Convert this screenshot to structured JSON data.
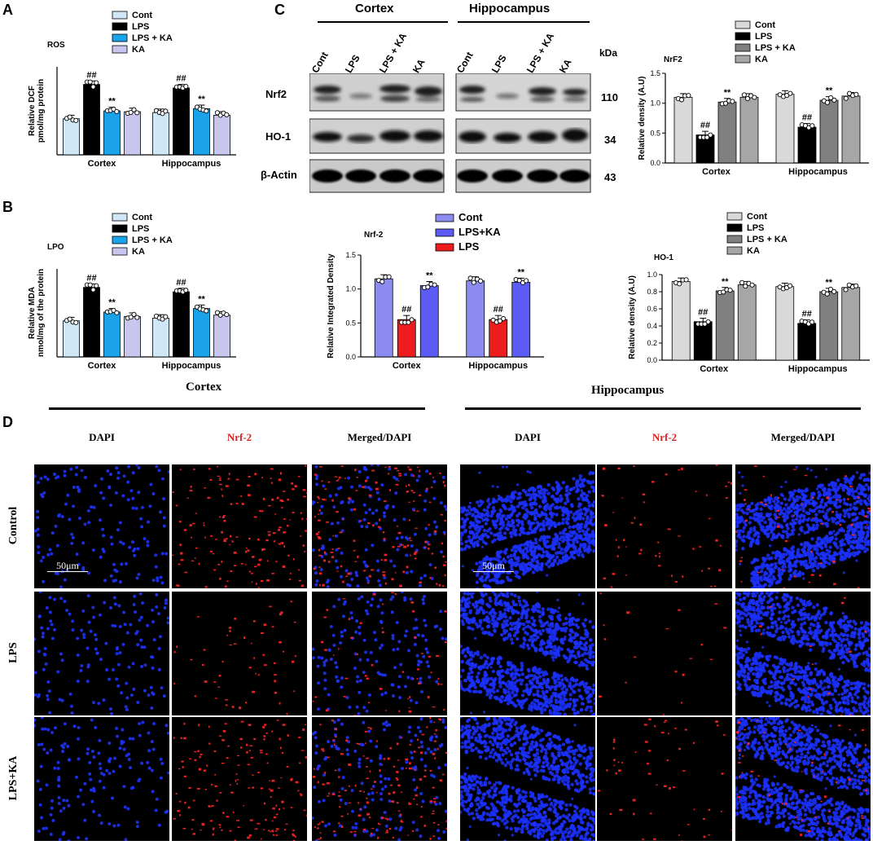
{
  "panel_labels": {
    "a": "A",
    "b": "B",
    "c": "C",
    "d": "D"
  },
  "colors": {
    "cont_light": "#cfe7f7",
    "lps_black": "#000000",
    "lpska_blue": "#1aa3e8",
    "ka_lavender": "#c8c6ef",
    "gray_light": "#d9d9d9",
    "gray_mid": "#808080",
    "gray_dark": "#a6a6a6",
    "nrf_cont": "#8c8cf0",
    "nrf_lpska": "#5c5cf5",
    "nrf_lps": "#ee1c1c",
    "dapi": "#1428f0",
    "nrf2_signal": "#ff2020"
  },
  "western": {
    "headers": [
      "Cortex",
      "Hippocampus"
    ],
    "lanes": [
      "Cont",
      "LPS",
      "LPS + KA",
      "KA",
      "Cont",
      "LPS",
      "LPS + KA",
      "KA"
    ],
    "kda_label": "kDa",
    "bands": [
      {
        "name": "Nrf2",
        "kda": "110"
      },
      {
        "name": "HO-1",
        "kda": "34"
      },
      {
        "name": "β-Actin",
        "kda": "43"
      }
    ]
  },
  "micro": {
    "region_titles": [
      "Cortex",
      "Hippocampus"
    ],
    "col_labels": [
      "DAPI",
      "Nrf-2",
      "Merged/DAPI",
      "DAPI",
      "Nrf-2",
      "Merged/DAPI"
    ],
    "row_labels": [
      "Control",
      "LPS",
      "LPS+KA"
    ],
    "scale_bar": "50μm"
  },
  "chart_data": [
    {
      "id": "A",
      "type": "bar",
      "title": "ROS",
      "ylabel": "Relative DCF pmol/mg protein",
      "categories": [
        "Cortex",
        "Hippocampus"
      ],
      "ylim": [
        0,
        2
      ],
      "legend_position": "top-right",
      "series": [
        {
          "name": "Cont",
          "color": "#cfe7f7",
          "values": [
            0.82,
            0.96
          ]
        },
        {
          "name": "LPS",
          "color": "#000000",
          "values": [
            1.6,
            1.52
          ],
          "annotation": "##"
        },
        {
          "name": "LPS + KA",
          "color": "#1aa3e8",
          "values": [
            1.0,
            1.05
          ],
          "annotation": "**"
        },
        {
          "name": "KA",
          "color": "#c8c6ef",
          "values": [
            0.98,
            0.9
          ]
        }
      ]
    },
    {
      "id": "B",
      "type": "bar",
      "title": "LPO",
      "ylabel": "Relative MDA nmol/mg of the protein",
      "categories": [
        "Cortex",
        "Hippocampus"
      ],
      "ylim": [
        0,
        2
      ],
      "legend_position": "top-right",
      "series": [
        {
          "name": "Cont",
          "color": "#cfe7f7",
          "values": [
            0.82,
            0.88
          ]
        },
        {
          "name": "LPS",
          "color": "#000000",
          "values": [
            1.58,
            1.48
          ],
          "annotation": "##"
        },
        {
          "name": "LPS + KA",
          "color": "#1aa3e8",
          "values": [
            1.02,
            1.1
          ],
          "annotation": "**"
        },
        {
          "name": "KA",
          "color": "#c8c6ef",
          "values": [
            0.92,
            0.95
          ]
        }
      ]
    },
    {
      "id": "C-NrF2",
      "type": "bar",
      "title": "NrF2",
      "ylabel": "Relative density (A.U)",
      "categories": [
        "Cortex",
        "Hippocampus"
      ],
      "ylim": [
        0,
        1.5
      ],
      "yticks": [
        0.0,
        0.5,
        1.0,
        1.5
      ],
      "legend_position": "top",
      "series": [
        {
          "name": "Cont",
          "color": "#d9d9d9",
          "values": [
            1.1,
            1.15
          ]
        },
        {
          "name": "LPS",
          "color": "#000000",
          "values": [
            0.47,
            0.6
          ],
          "annotation": "##"
        },
        {
          "name": "LPS + KA",
          "color": "#808080",
          "values": [
            1.02,
            1.05
          ],
          "annotation": "**"
        },
        {
          "name": "KA",
          "color": "#a6a6a6",
          "values": [
            1.1,
            1.12
          ]
        }
      ]
    },
    {
      "id": "C-Nrf-2-IF",
      "type": "bar",
      "title": "Nrf-2",
      "ylabel": "Relative Integrated Density",
      "categories": [
        "Cortex",
        "Hippocampus"
      ],
      "ylim": [
        0,
        1.5
      ],
      "yticks": [
        0.0,
        0.5,
        1.0,
        1.5
      ],
      "legend_position": "top",
      "series": [
        {
          "name": "Cont",
          "color": "#8c8cf0",
          "values": [
            1.15,
            1.12
          ]
        },
        {
          "name": "LPS+KA",
          "color": "#5c5cf5",
          "values": [
            1.05,
            1.1
          ],
          "annotation": "**"
        },
        {
          "name": "LPS",
          "color": "#ee1c1c",
          "values": [
            0.55,
            0.55
          ],
          "annotation": "##"
        }
      ],
      "bar_order": [
        "Cont",
        "LPS",
        "LPS+KA"
      ]
    },
    {
      "id": "C-HO-1",
      "type": "bar",
      "title": "HO-1",
      "ylabel": "Relative density (A.U)",
      "categories": [
        "Cortex",
        "Hippocampus"
      ],
      "ylim": [
        0,
        1.0
      ],
      "yticks": [
        0.0,
        0.2,
        0.4,
        0.6,
        0.8,
        1.0
      ],
      "legend_position": "top",
      "series": [
        {
          "name": "Cont",
          "color": "#d9d9d9",
          "values": [
            0.92,
            0.86
          ]
        },
        {
          "name": "LPS",
          "color": "#000000",
          "values": [
            0.45,
            0.43
          ],
          "annotation": "##"
        },
        {
          "name": "LPS + KA",
          "color": "#808080",
          "values": [
            0.81,
            0.8
          ],
          "annotation": "**"
        },
        {
          "name": "KA",
          "color": "#a6a6a6",
          "values": [
            0.88,
            0.85
          ]
        }
      ]
    }
  ]
}
